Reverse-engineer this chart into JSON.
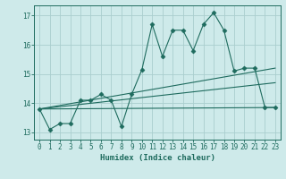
{
  "xlabel": "Humidex (Indice chaleur)",
  "bg_color": "#ceeaea",
  "grid_color": "#aacece",
  "line_color": "#1e6b5e",
  "xlim": [
    -0.5,
    23.5
  ],
  "ylim": [
    12.75,
    17.35
  ],
  "yticks": [
    13,
    14,
    15,
    16,
    17
  ],
  "xticks": [
    0,
    1,
    2,
    3,
    4,
    5,
    6,
    7,
    8,
    9,
    10,
    11,
    12,
    13,
    14,
    15,
    16,
    17,
    18,
    19,
    20,
    21,
    22,
    23
  ],
  "series": [
    {
      "x": [
        0,
        1,
        2,
        3,
        4,
        5,
        6,
        7,
        8,
        9,
        10,
        11,
        12,
        13,
        14,
        15,
        16,
        17,
        18,
        19,
        20,
        21,
        22,
        23
      ],
      "y": [
        13.8,
        13.1,
        13.3,
        13.3,
        14.1,
        14.1,
        14.3,
        14.1,
        13.2,
        14.3,
        15.15,
        16.7,
        15.6,
        16.5,
        16.5,
        15.8,
        16.7,
        17.1,
        16.5,
        15.1,
        15.2,
        15.2,
        13.85,
        13.85
      ],
      "marker": "D",
      "markersize": 2.5
    },
    {
      "x": [
        0,
        23
      ],
      "y": [
        13.8,
        13.85
      ],
      "marker": null
    },
    {
      "x": [
        0,
        23
      ],
      "y": [
        13.8,
        15.2
      ],
      "marker": null
    },
    {
      "x": [
        0,
        23
      ],
      "y": [
        13.8,
        14.7
      ],
      "marker": null
    }
  ]
}
